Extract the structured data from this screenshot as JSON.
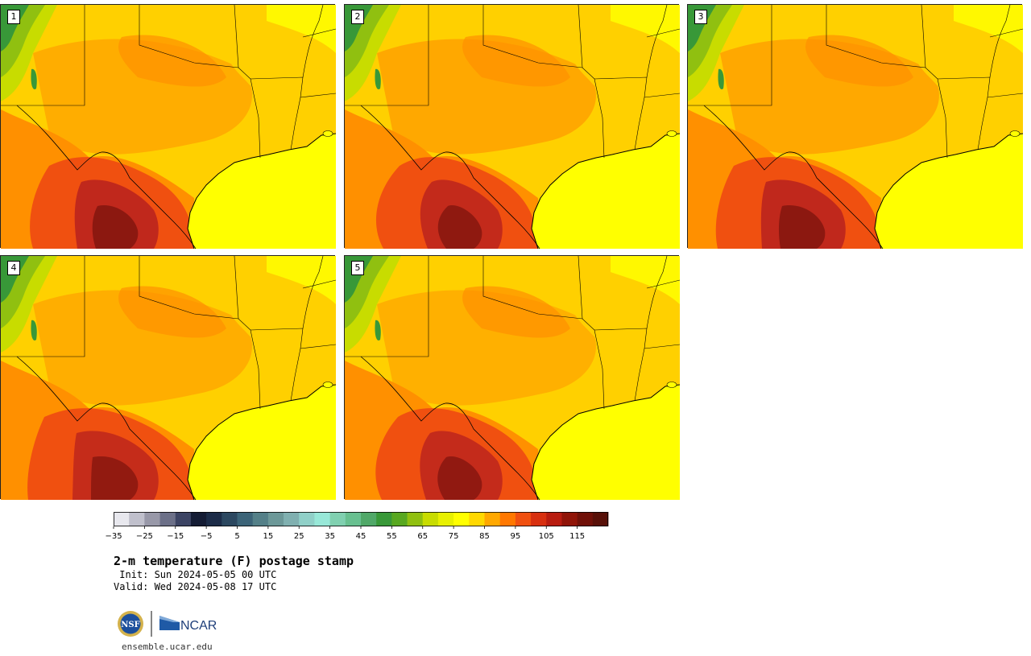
{
  "panels": [
    {
      "label": "1"
    },
    {
      "label": "2"
    },
    {
      "label": "3"
    },
    {
      "label": "4"
    },
    {
      "label": "5"
    }
  ],
  "colorbar": {
    "tick_labels": [
      "−35",
      "−25",
      "−15",
      "−5",
      "5",
      "15",
      "25",
      "35",
      "45",
      "55",
      "65",
      "75",
      "85",
      "95",
      "105",
      "115"
    ],
    "colors": [
      "#e8e8ee",
      "#c0c0cc",
      "#9898a8",
      "#6c7088",
      "#3c4464",
      "#141c34",
      "#1c2c48",
      "#2c4860",
      "#3c6478",
      "#548088",
      "#6c9898",
      "#80b0b0",
      "#90d0c8",
      "#98e8d8",
      "#80d0b0",
      "#68c090",
      "#50a868",
      "#389838",
      "#58a820",
      "#90c010",
      "#c8dc00",
      "#e8f000",
      "#ffff00",
      "#ffd800",
      "#ffa800",
      "#ff7800",
      "#f05010",
      "#d83010",
      "#b81c10",
      "#901408",
      "#701008",
      "#581008"
    ]
  },
  "title": "2-m temperature (F) postage stamp",
  "init_line": " Init: Sun 2024-05-05 00 UTC",
  "valid_line": "Valid: Wed 2024-05-08 17 UTC",
  "logos": {
    "nsf_text": "NSF",
    "ncar_text": "NCAR"
  },
  "footer_url": "ensemble.ucar.edu"
}
